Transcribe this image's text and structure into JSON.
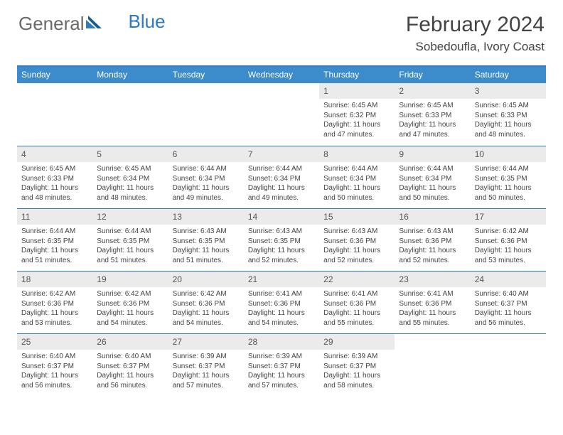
{
  "brand": {
    "word1": "General",
    "word2": "Blue"
  },
  "title": {
    "month_year": "February 2024",
    "location": "Sobedoufla, Ivory Coast"
  },
  "colors": {
    "header_bar": "#3c8bca",
    "rule": "#2f7ac0",
    "daynum_bg": "#ebebeb",
    "text": "#444444",
    "logo_gray": "#6a6a6a",
    "logo_blue": "#2f7ac0",
    "background": "#ffffff"
  },
  "calendar": {
    "type": "table",
    "columns": [
      "Sunday",
      "Monday",
      "Tuesday",
      "Wednesday",
      "Thursday",
      "Friday",
      "Saturday"
    ],
    "weeks": [
      [
        {
          "day": "",
          "lines": []
        },
        {
          "day": "",
          "lines": []
        },
        {
          "day": "",
          "lines": []
        },
        {
          "day": "",
          "lines": []
        },
        {
          "day": "1",
          "lines": [
            "Sunrise: 6:45 AM",
            "Sunset: 6:32 PM",
            "Daylight: 11 hours and 47 minutes."
          ]
        },
        {
          "day": "2",
          "lines": [
            "Sunrise: 6:45 AM",
            "Sunset: 6:33 PM",
            "Daylight: 11 hours and 47 minutes."
          ]
        },
        {
          "day": "3",
          "lines": [
            "Sunrise: 6:45 AM",
            "Sunset: 6:33 PM",
            "Daylight: 11 hours and 48 minutes."
          ]
        }
      ],
      [
        {
          "day": "4",
          "lines": [
            "Sunrise: 6:45 AM",
            "Sunset: 6:33 PM",
            "Daylight: 11 hours and 48 minutes."
          ]
        },
        {
          "day": "5",
          "lines": [
            "Sunrise: 6:45 AM",
            "Sunset: 6:34 PM",
            "Daylight: 11 hours and 48 minutes."
          ]
        },
        {
          "day": "6",
          "lines": [
            "Sunrise: 6:44 AM",
            "Sunset: 6:34 PM",
            "Daylight: 11 hours and 49 minutes."
          ]
        },
        {
          "day": "7",
          "lines": [
            "Sunrise: 6:44 AM",
            "Sunset: 6:34 PM",
            "Daylight: 11 hours and 49 minutes."
          ]
        },
        {
          "day": "8",
          "lines": [
            "Sunrise: 6:44 AM",
            "Sunset: 6:34 PM",
            "Daylight: 11 hours and 50 minutes."
          ]
        },
        {
          "day": "9",
          "lines": [
            "Sunrise: 6:44 AM",
            "Sunset: 6:34 PM",
            "Daylight: 11 hours and 50 minutes."
          ]
        },
        {
          "day": "10",
          "lines": [
            "Sunrise: 6:44 AM",
            "Sunset: 6:35 PM",
            "Daylight: 11 hours and 50 minutes."
          ]
        }
      ],
      [
        {
          "day": "11",
          "lines": [
            "Sunrise: 6:44 AM",
            "Sunset: 6:35 PM",
            "Daylight: 11 hours and 51 minutes."
          ]
        },
        {
          "day": "12",
          "lines": [
            "Sunrise: 6:44 AM",
            "Sunset: 6:35 PM",
            "Daylight: 11 hours and 51 minutes."
          ]
        },
        {
          "day": "13",
          "lines": [
            "Sunrise: 6:43 AM",
            "Sunset: 6:35 PM",
            "Daylight: 11 hours and 51 minutes."
          ]
        },
        {
          "day": "14",
          "lines": [
            "Sunrise: 6:43 AM",
            "Sunset: 6:35 PM",
            "Daylight: 11 hours and 52 minutes."
          ]
        },
        {
          "day": "15",
          "lines": [
            "Sunrise: 6:43 AM",
            "Sunset: 6:36 PM",
            "Daylight: 11 hours and 52 minutes."
          ]
        },
        {
          "day": "16",
          "lines": [
            "Sunrise: 6:43 AM",
            "Sunset: 6:36 PM",
            "Daylight: 11 hours and 52 minutes."
          ]
        },
        {
          "day": "17",
          "lines": [
            "Sunrise: 6:42 AM",
            "Sunset: 6:36 PM",
            "Daylight: 11 hours and 53 minutes."
          ]
        }
      ],
      [
        {
          "day": "18",
          "lines": [
            "Sunrise: 6:42 AM",
            "Sunset: 6:36 PM",
            "Daylight: 11 hours and 53 minutes."
          ]
        },
        {
          "day": "19",
          "lines": [
            "Sunrise: 6:42 AM",
            "Sunset: 6:36 PM",
            "Daylight: 11 hours and 54 minutes."
          ]
        },
        {
          "day": "20",
          "lines": [
            "Sunrise: 6:42 AM",
            "Sunset: 6:36 PM",
            "Daylight: 11 hours and 54 minutes."
          ]
        },
        {
          "day": "21",
          "lines": [
            "Sunrise: 6:41 AM",
            "Sunset: 6:36 PM",
            "Daylight: 11 hours and 54 minutes."
          ]
        },
        {
          "day": "22",
          "lines": [
            "Sunrise: 6:41 AM",
            "Sunset: 6:36 PM",
            "Daylight: 11 hours and 55 minutes."
          ]
        },
        {
          "day": "23",
          "lines": [
            "Sunrise: 6:41 AM",
            "Sunset: 6:36 PM",
            "Daylight: 11 hours and 55 minutes."
          ]
        },
        {
          "day": "24",
          "lines": [
            "Sunrise: 6:40 AM",
            "Sunset: 6:37 PM",
            "Daylight: 11 hours and 56 minutes."
          ]
        }
      ],
      [
        {
          "day": "25",
          "lines": [
            "Sunrise: 6:40 AM",
            "Sunset: 6:37 PM",
            "Daylight: 11 hours and 56 minutes."
          ]
        },
        {
          "day": "26",
          "lines": [
            "Sunrise: 6:40 AM",
            "Sunset: 6:37 PM",
            "Daylight: 11 hours and 56 minutes."
          ]
        },
        {
          "day": "27",
          "lines": [
            "Sunrise: 6:39 AM",
            "Sunset: 6:37 PM",
            "Daylight: 11 hours and 57 minutes."
          ]
        },
        {
          "day": "28",
          "lines": [
            "Sunrise: 6:39 AM",
            "Sunset: 6:37 PM",
            "Daylight: 11 hours and 57 minutes."
          ]
        },
        {
          "day": "29",
          "lines": [
            "Sunrise: 6:39 AM",
            "Sunset: 6:37 PM",
            "Daylight: 11 hours and 58 minutes."
          ]
        },
        {
          "day": "",
          "lines": []
        },
        {
          "day": "",
          "lines": []
        }
      ]
    ]
  }
}
